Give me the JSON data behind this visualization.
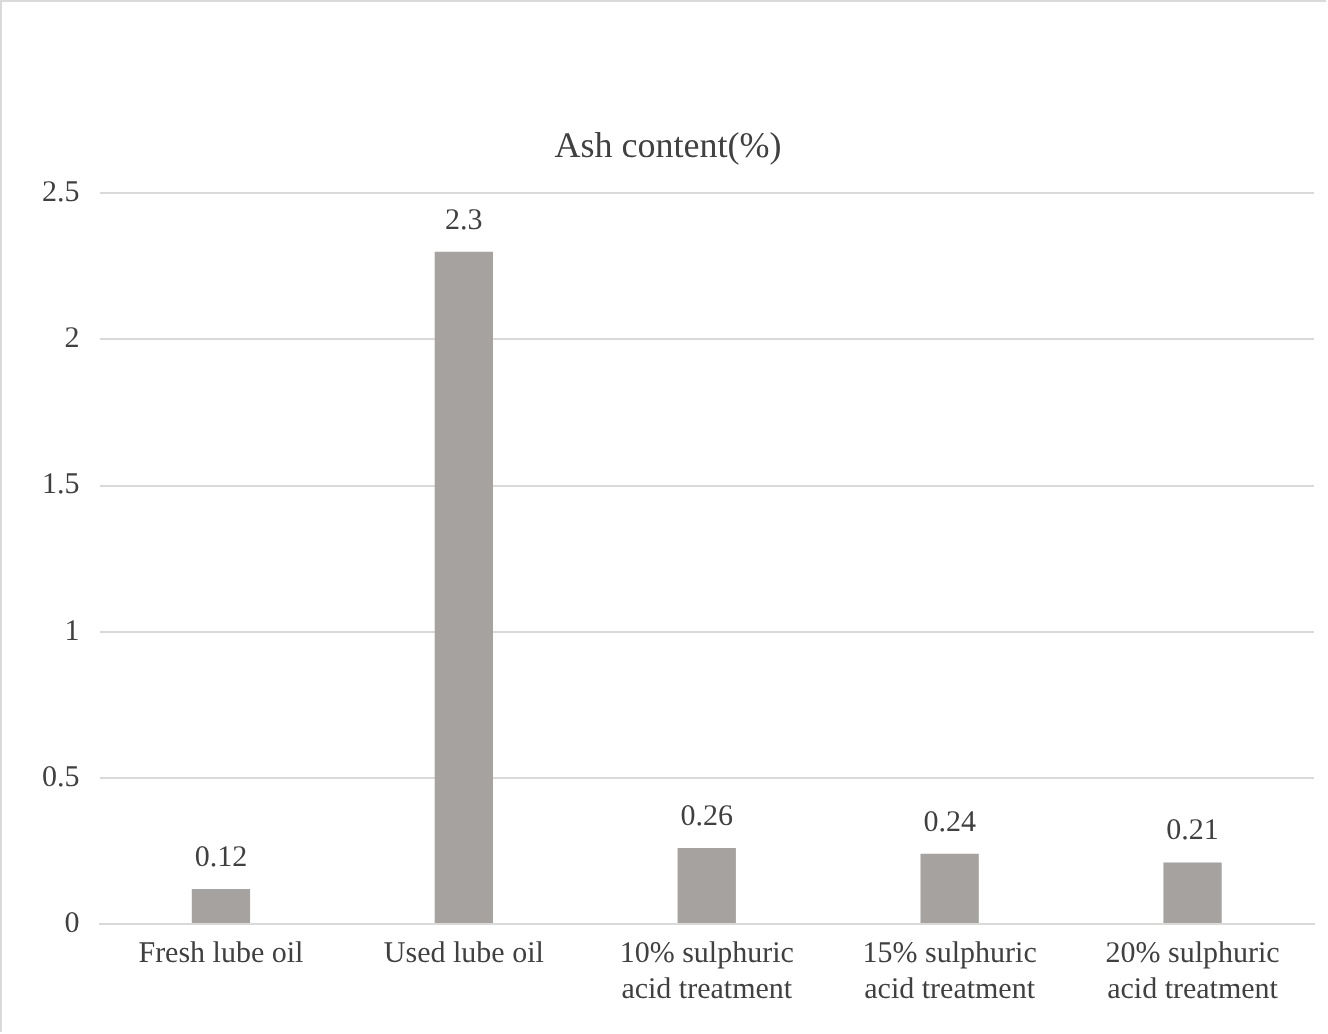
{
  "chart_data": {
    "type": "bar",
    "title": "Ash content(%)",
    "categories": [
      "Fresh lube oil",
      "Used lube oil",
      "10% sulphuric acid treatment",
      "15% sulphuric acid treatment",
      "20% sulphuric acid treatment"
    ],
    "values": [
      0.12,
      2.3,
      0.26,
      0.24,
      0.21
    ],
    "color": "#a5a2a0",
    "ylim": [
      0,
      2.5
    ],
    "yticks": [
      0,
      0.5,
      1,
      1.5,
      2,
      2.5
    ],
    "grid": "y",
    "data_labels": true,
    "legend": false
  }
}
